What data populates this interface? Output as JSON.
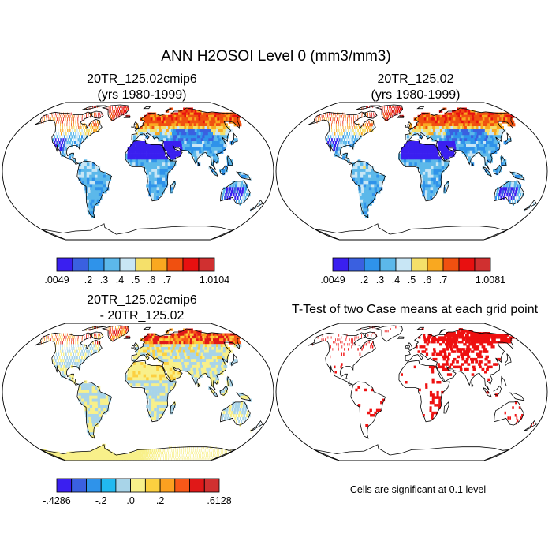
{
  "figure": {
    "title": "ANN H2OSOI Level 0 (mm3/mm3)",
    "note": "Cells are significant at 0.1 level"
  },
  "colors": {
    "abs_palette": [
      "#3a1ff0",
      "#3a60e0",
      "#2f93ea",
      "#5cb8ea",
      "#c8e6f5",
      "#f5e06a",
      "#f9a820",
      "#f05010",
      "#e81010",
      "#d03030"
    ],
    "diff_palette": [
      "#3a1ff0",
      "#3a60e0",
      "#2f93ea",
      "#21b9f0",
      "#a8d4e8",
      "#f8f08a",
      "#fcd040",
      "#fca020",
      "#f85818",
      "#e01818",
      "#d03030"
    ],
    "significant": "#ee1111",
    "coast": "#000000"
  },
  "chart_data": [
    {
      "type": "map",
      "id": "panel1",
      "title_line1": "20TR_125.02cmip6",
      "title_line2": "(yrs 1980-1999)",
      "projection": "Robinson",
      "colorbar": {
        "tick_labels": [
          ".0049",
          ".2",
          ".3",
          ".4",
          ".5",
          ".6",
          ".7",
          "1.0104"
        ],
        "levels": [
          0.0049,
          0.2,
          0.3,
          0.4,
          0.5,
          0.6,
          0.7,
          1.0104
        ]
      }
    },
    {
      "type": "map",
      "id": "panel2",
      "title_line1": "20TR_125.02",
      "title_line2": "(yrs 1980-1999)",
      "projection": "Robinson",
      "colorbar": {
        "tick_labels": [
          ".0049",
          ".2",
          ".3",
          ".4",
          ".5",
          ".6",
          ".7",
          "1.0081"
        ],
        "levels": [
          0.0049,
          0.2,
          0.3,
          0.4,
          0.5,
          0.6,
          0.7,
          1.0081
        ]
      }
    },
    {
      "type": "map",
      "id": "panel3",
      "title_line1": "20TR_125.02cmip6",
      "title_line2": "- 20TR_125.02",
      "projection": "Robinson",
      "colorbar": {
        "tick_labels": [
          "-.4286",
          "-.2",
          ".0",
          ".2",
          ".6128"
        ],
        "levels": [
          -0.4286,
          -0.2,
          0.0,
          0.2,
          0.6128
        ]
      }
    },
    {
      "type": "map",
      "id": "panel4",
      "title": "T-Test of two Case means at each grid point",
      "projection": "Robinson"
    }
  ]
}
